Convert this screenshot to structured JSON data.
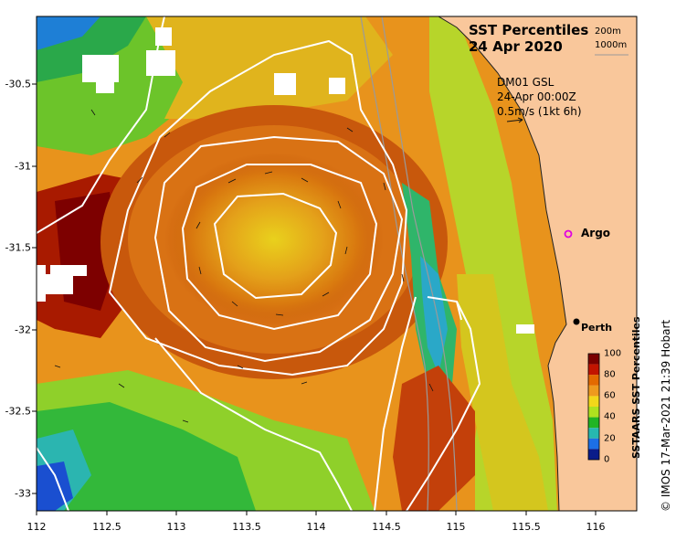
{
  "title": {
    "line1": "SST Percentiles",
    "line2": "24 Apr 2020"
  },
  "isobath_legend": [
    "200m",
    "1000m"
  ],
  "current_vectors": {
    "model": "DM01 GSL",
    "time": "24-Apr 00:00Z",
    "scale": "0.5m/s (1kt 6h)"
  },
  "places": {
    "argo": "Argo",
    "perth": "Perth"
  },
  "credit": "© IMOS 17-Mar-2021 21:39 Hobart",
  "axes": {
    "x_ticks": [
      "112",
      "112.5",
      "113",
      "113.5",
      "114",
      "114.5",
      "115",
      "115.5",
      "116"
    ],
    "y_ticks": [
      "-30.5",
      "-31",
      "-31.5",
      "-32",
      "-32.5",
      "-33"
    ]
  },
  "colorbar": {
    "title": "SSTAARS SST Percentiles",
    "ticks": [
      "100",
      "80",
      "60",
      "40",
      "20",
      "0"
    ],
    "colors": [
      "#7a0000",
      "#c21400",
      "#e36a00",
      "#ee9a1e",
      "#f2d81a",
      "#aee21f",
      "#21b524",
      "#27b8b0",
      "#1c6fe6",
      "#0a1c8a"
    ]
  },
  "colors": {
    "land": "#f9c79b",
    "coast": "#222222",
    "contour": "#ffffff",
    "isobath": "#9a9a9a"
  }
}
